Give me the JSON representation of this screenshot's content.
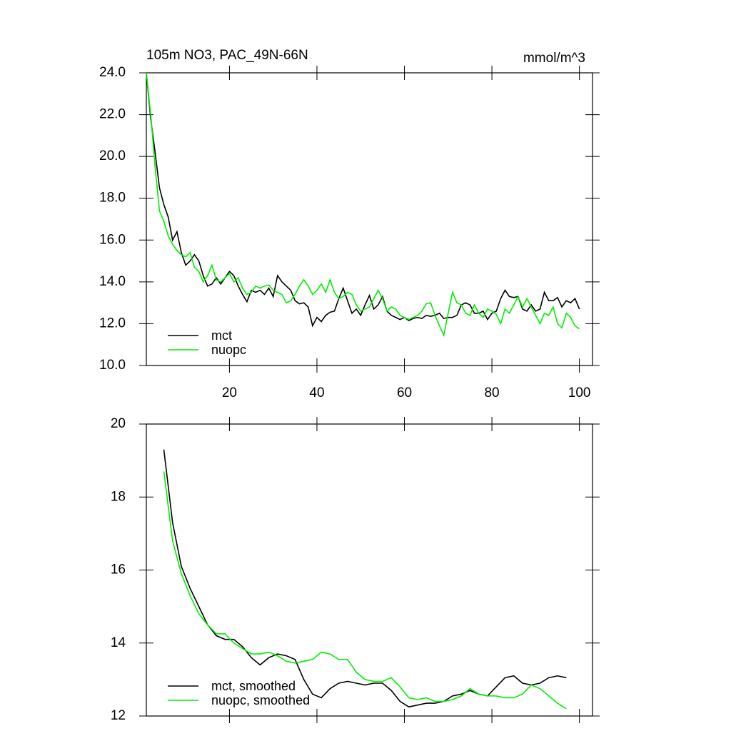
{
  "chart_data": [
    {
      "type": "line",
      "title": "105m NO3, PAC_49N-66N",
      "subtitle": "mmol/m^3",
      "x": [
        1,
        2,
        3,
        4,
        5,
        6,
        7,
        8,
        9,
        10,
        11,
        12,
        13,
        14,
        15,
        16,
        17,
        18,
        19,
        20,
        21,
        22,
        23,
        24,
        25,
        26,
        27,
        28,
        29,
        30,
        31,
        32,
        33,
        34,
        35,
        36,
        37,
        38,
        39,
        40,
        41,
        42,
        43,
        44,
        45,
        46,
        47,
        48,
        49,
        50,
        51,
        52,
        53,
        54,
        55,
        56,
        57,
        58,
        59,
        60,
        61,
        62,
        63,
        64,
        65,
        66,
        67,
        68,
        69,
        70,
        71,
        72,
        73,
        74,
        75,
        76,
        77,
        78,
        79,
        80,
        81,
        82,
        83,
        84,
        85,
        86,
        87,
        88,
        89,
        90,
        91,
        92,
        93,
        94,
        95,
        96,
        97,
        98,
        99,
        100
      ],
      "series": [
        {
          "name": "mct",
          "color": "#000000",
          "values": [
            24.0,
            21.8,
            20.2,
            18.5,
            17.7,
            17.1,
            16.0,
            16.4,
            15.4,
            14.8,
            15.0,
            15.3,
            15.0,
            14.3,
            13.8,
            13.9,
            14.2,
            13.9,
            14.2,
            14.5,
            14.3,
            13.8,
            13.4,
            13.05,
            13.6,
            13.5,
            13.6,
            13.4,
            13.7,
            13.3,
            14.3,
            14.0,
            13.8,
            13.6,
            13.1,
            12.95,
            13.0,
            12.8,
            11.9,
            12.3,
            12.1,
            12.4,
            12.55,
            12.6,
            13.2,
            13.7,
            13.1,
            12.5,
            12.7,
            12.4,
            12.9,
            13.35,
            12.7,
            12.9,
            13.3,
            12.6,
            12.4,
            12.3,
            12.2,
            12.3,
            12.15,
            12.25,
            12.3,
            12.25,
            12.4,
            12.35,
            12.4,
            12.5,
            12.25,
            12.3,
            12.3,
            12.4,
            12.9,
            13.0,
            12.9,
            12.5,
            12.5,
            12.6,
            12.2,
            12.5,
            12.6,
            13.2,
            13.6,
            13.3,
            13.25,
            13.3,
            12.7,
            12.6,
            12.9,
            12.6,
            12.7,
            13.5,
            13.1,
            13.1,
            13.25,
            12.8,
            13.1,
            13.0,
            13.2,
            12.7
          ]
        },
        {
          "name": "nuopc",
          "color": "#00ee00",
          "values": [
            24.0,
            22.0,
            19.5,
            17.4,
            16.9,
            16.2,
            15.8,
            15.5,
            15.3,
            15.2,
            15.4,
            14.7,
            14.5,
            14.0,
            14.3,
            14.8,
            14.1,
            14.0,
            14.2,
            14.4,
            14.0,
            14.2,
            13.7,
            13.4,
            13.5,
            13.8,
            13.7,
            13.8,
            13.85,
            13.6,
            13.5,
            13.4,
            13.0,
            13.1,
            13.4,
            13.8,
            14.1,
            13.8,
            13.4,
            13.6,
            13.9,
            13.5,
            14.1,
            13.5,
            13.2,
            13.3,
            13.5,
            13.4,
            12.9,
            12.6,
            12.7,
            12.8,
            13.2,
            13.6,
            13.2,
            12.6,
            12.8,
            12.7,
            12.4,
            12.3,
            12.2,
            12.3,
            12.4,
            12.6,
            12.95,
            13.0,
            12.4,
            11.9,
            11.45,
            12.5,
            13.5,
            13.0,
            12.9,
            12.5,
            12.4,
            12.9,
            12.5,
            12.3,
            12.7,
            12.6,
            12.45,
            12.0,
            12.7,
            12.5,
            12.9,
            13.3,
            12.8,
            13.2,
            12.8,
            12.4,
            12.0,
            12.5,
            12.4,
            12.8,
            12.0,
            11.8,
            12.5,
            12.3,
            11.9,
            11.75
          ]
        }
      ],
      "xlim": [
        1,
        103
      ],
      "xticks": [
        20,
        40,
        60,
        80,
        100
      ],
      "show_xtick_labels": true,
      "ylim": [
        10,
        24
      ],
      "yticks": [
        {
          "value": 10,
          "label": "10.0"
        },
        {
          "value": 12,
          "label": "12.0"
        },
        {
          "value": 14,
          "label": "14.0"
        },
        {
          "value": 16,
          "label": "16.0"
        },
        {
          "value": 18,
          "label": "18.0"
        },
        {
          "value": 20,
          "label": "20.0"
        },
        {
          "value": 22,
          "label": "22.0"
        },
        {
          "value": 24,
          "label": "24.0"
        }
      ],
      "legend": "lower left"
    },
    {
      "type": "line",
      "x": [
        5,
        7,
        9,
        11,
        13,
        15,
        17,
        19,
        21,
        23,
        25,
        27,
        29,
        31,
        33,
        35,
        37,
        39,
        41,
        43,
        45,
        47,
        49,
        51,
        53,
        55,
        57,
        59,
        61,
        63,
        65,
        67,
        69,
        71,
        73,
        75,
        77,
        79,
        81,
        83,
        85,
        87,
        89,
        91,
        93,
        95,
        97
      ],
      "series": [
        {
          "name": "mct, smoothed",
          "color": "#000000",
          "values": [
            19.3,
            17.3,
            16.1,
            15.5,
            15.0,
            14.5,
            14.2,
            14.1,
            14.1,
            13.9,
            13.6,
            13.4,
            13.6,
            13.7,
            13.65,
            13.55,
            13.0,
            12.6,
            12.5,
            12.75,
            12.9,
            12.95,
            12.9,
            12.85,
            12.9,
            12.9,
            12.7,
            12.4,
            12.25,
            12.3,
            12.35,
            12.35,
            12.4,
            12.55,
            12.6,
            12.7,
            12.6,
            12.55,
            12.8,
            13.05,
            13.1,
            12.9,
            12.85,
            12.9,
            13.05,
            13.1,
            13.05
          ]
        },
        {
          "name": "nuopc, smoothed",
          "color": "#00ee00",
          "values": [
            18.7,
            16.8,
            15.9,
            15.3,
            14.8,
            14.5,
            14.25,
            14.25,
            14.0,
            13.85,
            13.7,
            13.7,
            13.75,
            13.65,
            13.5,
            13.45,
            13.5,
            13.55,
            13.75,
            13.7,
            13.55,
            13.55,
            13.2,
            13.0,
            12.95,
            12.95,
            13.05,
            12.8,
            12.5,
            12.45,
            12.5,
            12.4,
            12.4,
            12.45,
            12.55,
            12.75,
            12.6,
            12.55,
            12.55,
            12.5,
            12.5,
            12.6,
            12.85,
            12.75,
            12.55,
            12.35,
            12.2
          ]
        }
      ],
      "xlim": [
        1,
        103
      ],
      "xticks": [
        20,
        40,
        60,
        80,
        100
      ],
      "show_xtick_labels": false,
      "ylim": [
        12,
        20
      ],
      "yticks": [
        12,
        14,
        16,
        18,
        20
      ],
      "legend": "lower left"
    }
  ]
}
